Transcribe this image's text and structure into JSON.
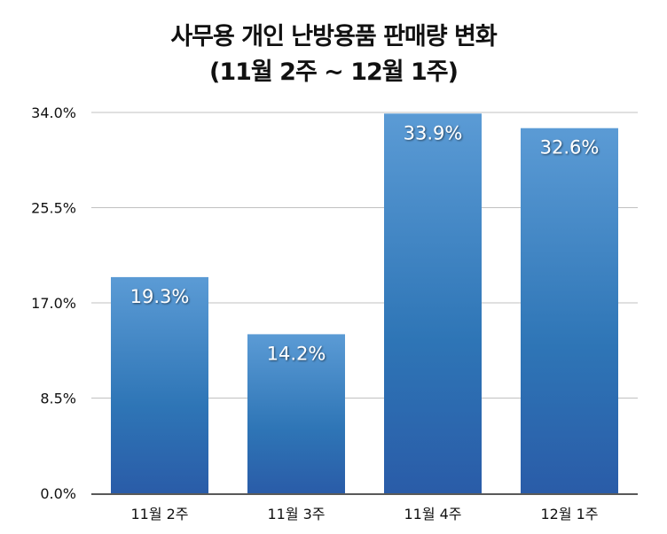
{
  "chart_data": {
    "type": "bar",
    "title": "사무용 개인 난방용품 판매량 변화",
    "subtitle": "(11월 2주 ~ 12월 1주)",
    "categories": [
      "11월 2주",
      "11월 3주",
      "11월 4주",
      "12월 1주"
    ],
    "values": [
      19.3,
      14.2,
      33.9,
      32.6
    ],
    "data_labels": [
      "19.3%",
      "14.2%",
      "33.9%",
      "32.6%"
    ],
    "yticks": [
      0,
      8.5,
      17.0,
      25.5,
      34.0
    ],
    "ytick_labels": [
      "0.0%",
      "8.5%",
      "17.0%",
      "25.5%",
      "34.0%"
    ],
    "ylim": [
      0,
      34
    ],
    "xlabel": "",
    "ylabel": "",
    "grid": true,
    "colors": {
      "bar_top": "#5b9bd5",
      "bar_mid": "#2e75b6",
      "bar_bottom": "#2a5ca8",
      "grid": "#c0c0c0",
      "axis": "#222222"
    }
  }
}
